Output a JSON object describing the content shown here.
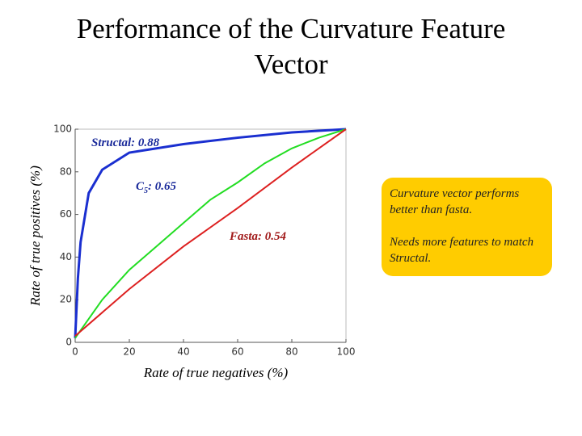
{
  "chart_data": {
    "type": "line",
    "title": "Performance of the Curvature Feature Vector",
    "xlabel": "Rate of true negatives (%)",
    "ylabel": "Rate of true positives (%)",
    "xlim": [
      0,
      100
    ],
    "ylim": [
      0,
      100
    ],
    "xticks": [
      0,
      20,
      40,
      60,
      80,
      100
    ],
    "yticks": [
      0,
      20,
      40,
      60,
      80,
      100
    ],
    "series": [
      {
        "color": "#1a2fd0",
        "x": [
          0,
          1,
          2,
          5,
          10,
          20,
          40,
          60,
          80,
          100
        ],
        "values": [
          2,
          30,
          47,
          70,
          81,
          89,
          93,
          96,
          98.5,
          100
        ]
      },
      {
        "color": "#22dd22",
        "x": [
          0,
          10,
          20,
          30,
          40,
          50,
          60,
          70,
          80,
          90,
          100
        ],
        "values": [
          2,
          20,
          34,
          45,
          56,
          67,
          75,
          84,
          91,
          96,
          100
        ]
      },
      {
        "color": "#dd2020",
        "x": [
          0,
          20,
          40,
          60,
          80,
          100
        ],
        "values": [
          3,
          25,
          45,
          63,
          82,
          100
        ]
      }
    ],
    "annotations": [
      {
        "text": "Structal: 0.88",
        "color": "#1a2a9a"
      },
      {
        "text": "C",
        "sub": "5",
        "rest": ": 0.65",
        "color": "#1a2a9a"
      },
      {
        "text": "Fasta: 0.54",
        "color": "#a01818"
      }
    ],
    "callout": [
      "Curvature vector performs better than fasta.",
      "Needs more features to match Structal."
    ]
  }
}
